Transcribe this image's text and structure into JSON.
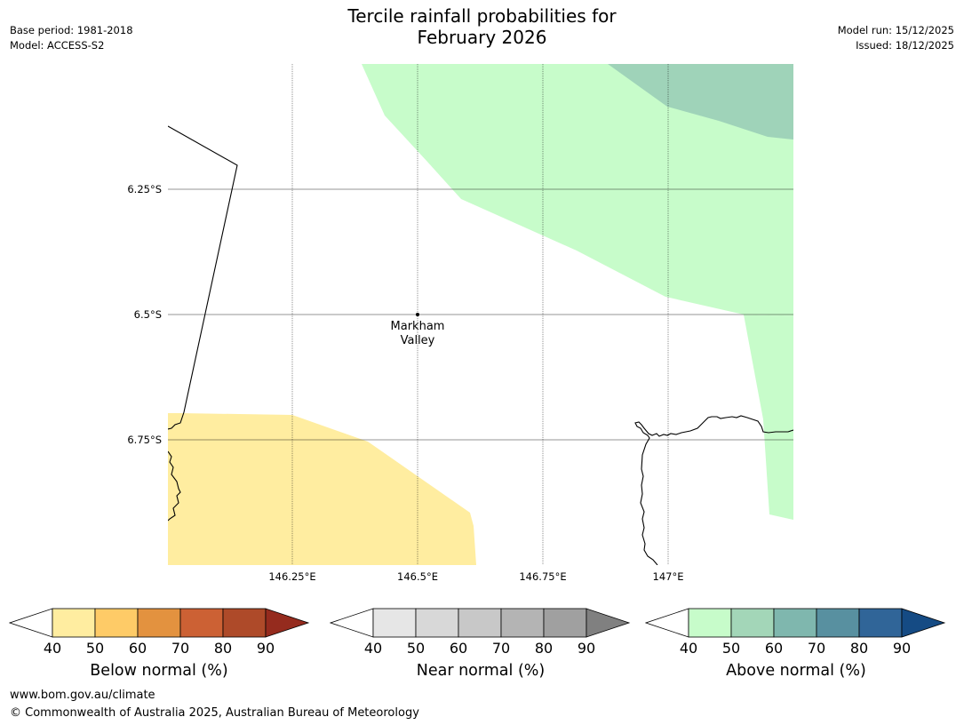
{
  "header": {
    "title_line1": "Tercile rainfall probabilities for",
    "title_line2": "February 2026",
    "base_period": "Base period: 1981-2018",
    "model": "Model: ACCESS-S2",
    "model_run": "Model run: 15/12/2025",
    "issued": "Issued: 18/12/2025"
  },
  "map": {
    "lat_labels": [
      "6.25°S",
      "6.5°S",
      "6.75°S"
    ],
    "lon_labels": [
      "146.25°E",
      "146.5°E",
      "146.75°E",
      "147°E"
    ],
    "place": {
      "name_line1": "Markham",
      "name_line2": "Valley"
    },
    "colors": {
      "below_40_50": "#ffeda0",
      "above_40_50": "#c7fcca",
      "above_50_60": "#9fd3b9",
      "coast": "#000000",
      "grid": "#000000"
    },
    "regions": [
      {
        "category": "Above normal",
        "class": "40-50"
      },
      {
        "category": "Above normal",
        "class": "50-60"
      },
      {
        "category": "Below normal",
        "class": "40-50"
      }
    ]
  },
  "colorbars": [
    {
      "label": "Below normal (%)",
      "ticks": [
        "40",
        "50",
        "60",
        "70",
        "80",
        "90"
      ],
      "colors": [
        "#ffffff",
        "#ffeda0",
        "#fecb67",
        "#e3923f",
        "#cc6134",
        "#ae4a29",
        "#952b1e"
      ]
    },
    {
      "label": "Near normal (%)",
      "ticks": [
        "40",
        "50",
        "60",
        "70",
        "80",
        "90"
      ],
      "colors": [
        "#ffffff",
        "#e6e6e6",
        "#d8d8d8",
        "#c8c8c8",
        "#b4b4b4",
        "#a0a0a0",
        "#808080"
      ]
    },
    {
      "label": "Above normal (%)",
      "ticks": [
        "40",
        "50",
        "60",
        "70",
        "80",
        "90"
      ],
      "colors": [
        "#ffffff",
        "#c7fcca",
        "#a3d6b8",
        "#7fb7ae",
        "#5890a0",
        "#306598",
        "#154b84"
      ]
    }
  ],
  "footer": {
    "url": "www.bom.gov.au/climate",
    "copyright": "© Commonwealth of Australia 2025, Australian Bureau of Meteorology"
  }
}
